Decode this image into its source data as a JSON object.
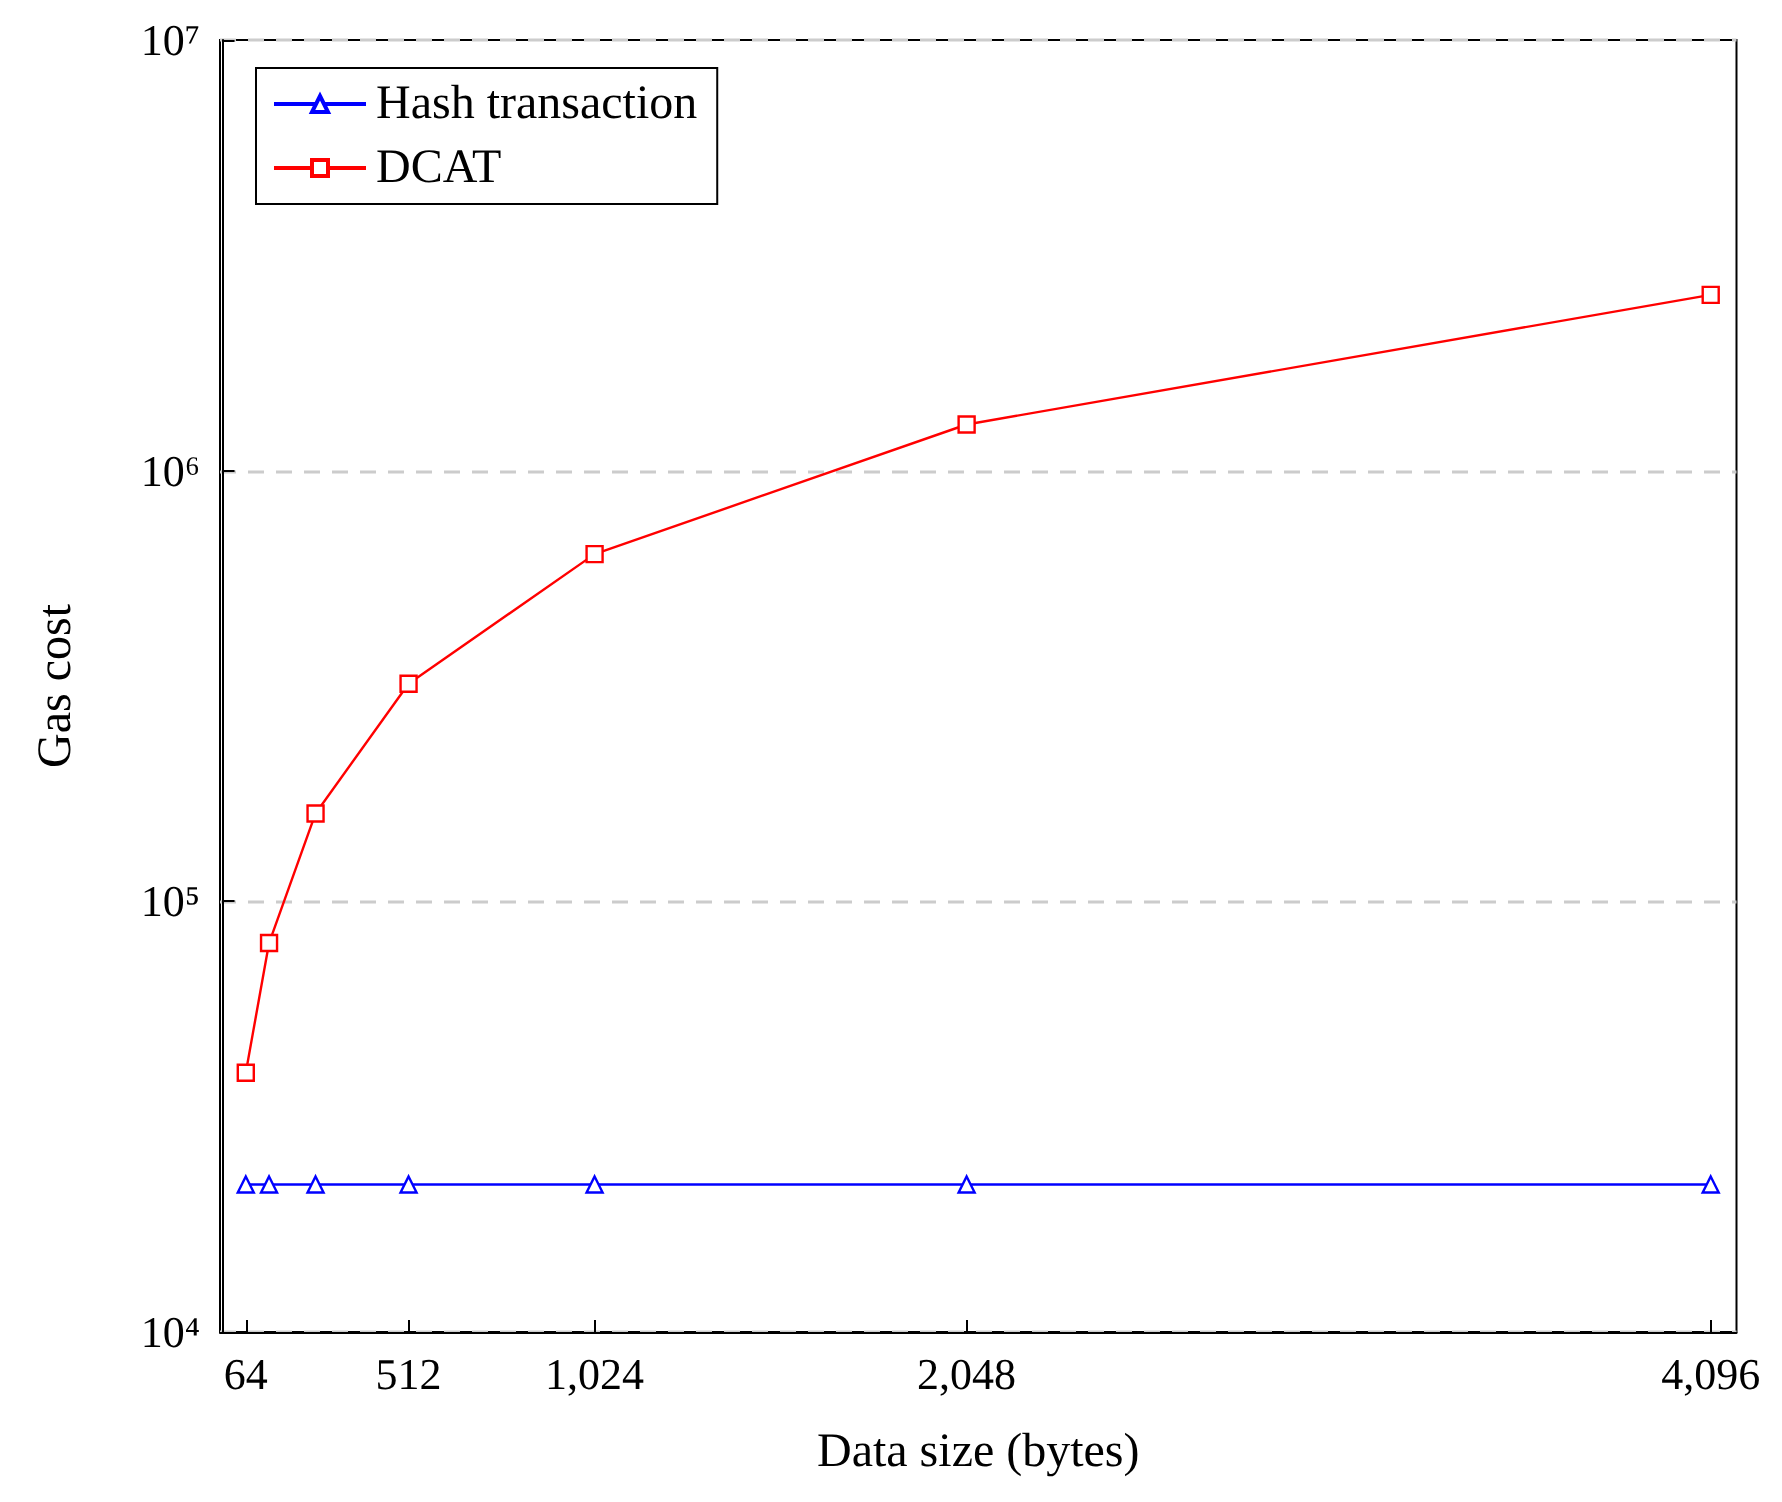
{
  "chart_data": {
    "type": "line",
    "xlabel": "Data size (bytes)",
    "ylabel": "Gas cost",
    "x": [
      64,
      128,
      256,
      512,
      1024,
      2048,
      4096
    ],
    "series": [
      {
        "name": "Hash transaction",
        "color": "#0000ff",
        "marker": "triangle",
        "values": [
          22000,
          22000,
          22000,
          22000,
          22000,
          22000,
          22000
        ]
      },
      {
        "name": "DCAT",
        "color": "#ff0000",
        "marker": "square",
        "values": [
          40000,
          80000,
          160000,
          320000,
          640000,
          1280000,
          2560000
        ]
      }
    ],
    "xlim": [
      -7,
      4167
    ],
    "xticks": [
      64,
      512,
      {
        "value": 1024,
        "label": "1,024"
      },
      {
        "value": 2048,
        "label": "2,048"
      },
      {
        "value": 4096,
        "label": "4,096"
      }
    ],
    "ylim": [
      10000,
      10000000
    ],
    "yticks": [
      {
        "value": 10000,
        "label": "10⁴"
      },
      {
        "value": 100000,
        "label": "10⁵"
      },
      {
        "value": 1000000,
        "label": "10⁶"
      },
      {
        "value": 10000000,
        "label": "10⁷"
      }
    ],
    "log": true,
    "grid": "y",
    "legend": "top left",
    "line_style": "solid"
  }
}
